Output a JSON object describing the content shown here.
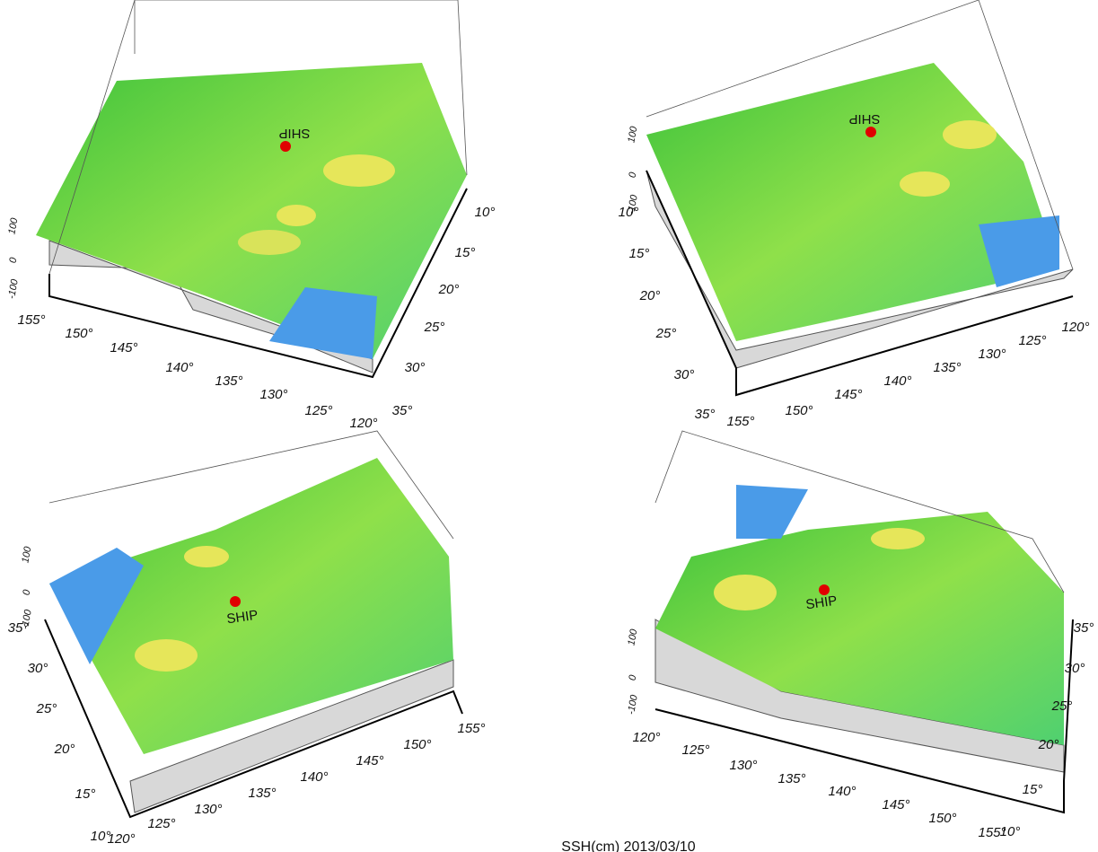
{
  "panels": [
    {
      "lon_labels": [
        "155°",
        "150°",
        "145°",
        "140°",
        "135°",
        "130°",
        "125°",
        "120°"
      ],
      "lat_labels": [
        "10°",
        "15°",
        "20°",
        "25°",
        "30°",
        "35°"
      ],
      "z_labels": [
        "100",
        "0",
        "-100"
      ],
      "ship_label": "SHIP"
    },
    {
      "lon_labels": [
        "155°",
        "150°",
        "145°",
        "140°",
        "135°",
        "130°",
        "125°",
        "120°"
      ],
      "lat_labels": [
        "10°",
        "15°",
        "20°",
        "25°",
        "30°",
        "35°"
      ],
      "z_labels": [
        "100",
        "0",
        "-100"
      ],
      "ship_label": "SHIP"
    },
    {
      "lon_labels": [
        "120°",
        "125°",
        "130°",
        "135°",
        "140°",
        "145°",
        "150°",
        "155°"
      ],
      "lat_labels": [
        "35°",
        "30°",
        "25°",
        "20°",
        "15°",
        "10°"
      ],
      "z_labels": [
        "100",
        "0",
        "-100"
      ],
      "ship_label": "SHIP"
    },
    {
      "lon_labels": [
        "120°",
        "125°",
        "130°",
        "135°",
        "140°",
        "145°",
        "150°",
        "155°"
      ],
      "lat_labels": [
        "35°",
        "30°",
        "25°",
        "20°",
        "15°",
        "10°"
      ],
      "z_labels": [
        "100",
        "0",
        "-100"
      ],
      "ship_label": "SHIP"
    }
  ],
  "caption": "SSH(cm) 2013/03/10"
}
